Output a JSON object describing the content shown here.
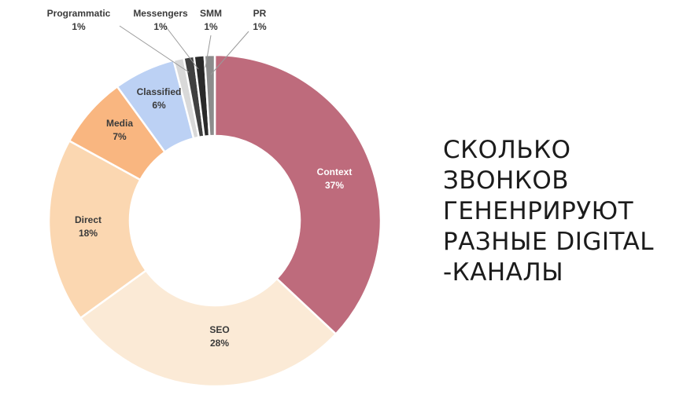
{
  "headline": {
    "lines": [
      "СКОЛЬКО",
      "ЗВОНКОВ",
      "ГЕНЕНРИРУЮТ",
      "РАЗНЫЕ DIGITAL",
      "-КАНАЛЫ"
    ]
  },
  "chart_data": {
    "type": "pie",
    "donut": true,
    "title": "",
    "slices": [
      {
        "name": "Context",
        "label": "Context",
        "value_label": "37%",
        "value": 37,
        "color": "#be6b7c"
      },
      {
        "name": "SEO",
        "label": "SEO",
        "value_label": "28%",
        "value": 28,
        "color": "#fbead6"
      },
      {
        "name": "Direct",
        "label": "Direct",
        "value_label": "18%",
        "value": 18,
        "color": "#fbd7b1"
      },
      {
        "name": "Media",
        "label": "Media",
        "value_label": "7%",
        "value": 7,
        "color": "#f9b680"
      },
      {
        "name": "Classified",
        "label": "Classified",
        "value_label": "6%",
        "value": 6,
        "color": "#bcd1f4"
      },
      {
        "name": "Programmatic",
        "label": "Programmatic",
        "value_label": "1%",
        "value": 1,
        "color": "#d9d9d9"
      },
      {
        "name": "Messengers",
        "label": "Messengers",
        "value_label": "1%",
        "value": 1,
        "color": "#404040"
      },
      {
        "name": "SMM",
        "label": "SMM",
        "value_label": "1%",
        "value": 1,
        "color": "#2a2a2a"
      },
      {
        "name": "PR",
        "label": "PR",
        "value_label": "1%",
        "value": 1,
        "color": "#8c8c8c"
      }
    ]
  }
}
